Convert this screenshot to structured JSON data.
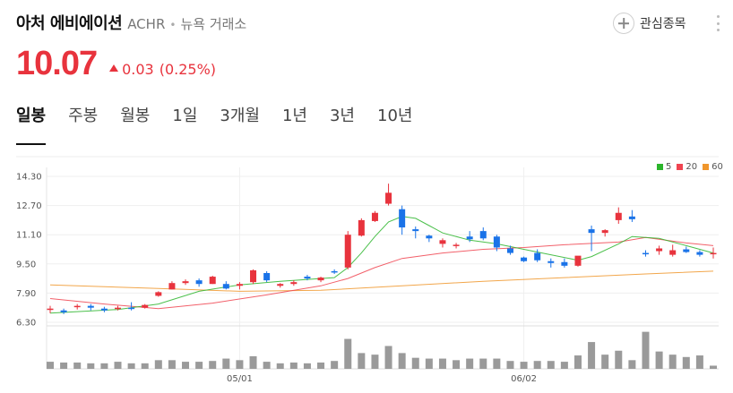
{
  "header": {
    "name": "아처 에비에이션",
    "ticker": "ACHR",
    "separator": "•",
    "exchange": "뉴욕 거래소",
    "watch_label": "관심종목"
  },
  "quote": {
    "price": "10.07",
    "change": "0.03",
    "change_pct": "(0.25%)",
    "up_color": "#e8333d",
    "down_color": "#1a73e8"
  },
  "tabs": [
    {
      "label": "일봉",
      "active": true
    },
    {
      "label": "주봉",
      "active": false
    },
    {
      "label": "월봉",
      "active": false
    },
    {
      "label": "1일",
      "active": false
    },
    {
      "label": "3개월",
      "active": false
    },
    {
      "label": "1년",
      "active": false
    },
    {
      "label": "3년",
      "active": false
    },
    {
      "label": "10년",
      "active": false
    }
  ],
  "legend": [
    {
      "label": "5",
      "color": "#2cb52c"
    },
    {
      "label": "20",
      "color": "#f04450"
    },
    {
      "label": "60",
      "color": "#f0962c"
    }
  ],
  "chart_data": {
    "type": "candlestick",
    "y_ticks": [
      "14.30",
      "12.70",
      "11.10",
      "9.50",
      "7.90",
      "6.30"
    ],
    "y_tick_values": [
      14.3,
      12.7,
      11.1,
      9.5,
      7.9,
      6.3
    ],
    "ylim": [
      6.3,
      14.3
    ],
    "x_labels": [
      {
        "label": "05/01",
        "index": 14
      },
      {
        "label": "06/02",
        "index": 35
      }
    ],
    "grid": true,
    "legend_position": "top-right",
    "candles": [
      [
        7.0,
        7.2,
        6.8,
        7.05
      ],
      [
        6.95,
        7.05,
        6.75,
        6.85
      ],
      [
        7.15,
        7.3,
        7.0,
        7.2
      ],
      [
        7.2,
        7.3,
        6.95,
        7.1
      ],
      [
        7.05,
        7.15,
        6.85,
        6.95
      ],
      [
        7.05,
        7.2,
        6.95,
        7.1
      ],
      [
        7.1,
        7.4,
        6.95,
        7.05
      ],
      [
        7.1,
        7.3,
        7.05,
        7.25
      ],
      [
        7.75,
        8.0,
        7.7,
        7.95
      ],
      [
        8.1,
        8.55,
        8.1,
        8.45
      ],
      [
        8.45,
        8.65,
        8.35,
        8.55
      ],
      [
        8.6,
        8.7,
        8.25,
        8.4
      ],
      [
        8.4,
        8.85,
        8.4,
        8.8
      ],
      [
        8.4,
        8.55,
        8.1,
        8.15
      ],
      [
        8.3,
        8.5,
        8.1,
        8.4
      ],
      [
        8.5,
        9.2,
        8.4,
        9.15
      ],
      [
        9.0,
        9.1,
        8.5,
        8.6
      ],
      [
        8.3,
        8.45,
        8.2,
        8.4
      ],
      [
        8.4,
        8.6,
        8.3,
        8.5
      ],
      [
        8.8,
        8.9,
        8.6,
        8.7
      ],
      [
        8.6,
        8.8,
        8.5,
        8.75
      ],
      [
        9.1,
        9.2,
        8.95,
        9.05
      ],
      [
        9.3,
        11.3,
        9.2,
        11.1
      ],
      [
        11.05,
        12.0,
        11.0,
        11.9
      ],
      [
        11.85,
        12.4,
        11.8,
        12.3
      ],
      [
        12.8,
        13.9,
        12.7,
        13.4
      ],
      [
        12.5,
        12.7,
        11.1,
        11.5
      ],
      [
        11.4,
        11.55,
        10.9,
        11.3
      ],
      [
        11.05,
        11.1,
        10.7,
        10.9
      ],
      [
        10.6,
        10.9,
        10.4,
        10.8
      ],
      [
        10.5,
        10.65,
        10.35,
        10.55
      ],
      [
        11.0,
        11.3,
        10.7,
        10.85
      ],
      [
        11.3,
        11.5,
        10.8,
        10.9
      ],
      [
        11.0,
        11.1,
        10.2,
        10.4
      ],
      [
        10.35,
        10.5,
        10.0,
        10.1
      ],
      [
        9.85,
        9.9,
        9.6,
        9.65
      ],
      [
        10.1,
        10.3,
        9.6,
        9.7
      ],
      [
        9.65,
        9.8,
        9.3,
        9.55
      ],
      [
        9.6,
        9.8,
        9.3,
        9.4
      ],
      [
        9.4,
        9.9,
        9.35,
        9.95
      ],
      [
        11.4,
        11.6,
        10.2,
        11.2
      ],
      [
        11.2,
        11.4,
        11.0,
        11.35
      ],
      [
        11.9,
        12.6,
        11.7,
        12.3
      ],
      [
        12.1,
        12.45,
        11.8,
        11.95
      ],
      [
        10.1,
        10.25,
        9.9,
        10.05
      ],
      [
        10.2,
        10.5,
        10.0,
        10.35
      ],
      [
        10.0,
        10.55,
        9.9,
        10.25
      ],
      [
        10.3,
        10.45,
        10.1,
        10.15
      ],
      [
        10.15,
        10.25,
        9.9,
        10.0
      ],
      [
        10.05,
        10.4,
        9.8,
        10.1
      ]
    ],
    "ma5": [
      [
        0,
        6.8
      ],
      [
        5,
        7.0
      ],
      [
        8,
        7.3
      ],
      [
        11,
        8.0
      ],
      [
        14,
        8.35
      ],
      [
        17,
        8.55
      ],
      [
        20,
        8.7
      ],
      [
        21,
        8.75
      ],
      [
        22,
        9.3
      ],
      [
        23,
        10.1
      ],
      [
        24,
        11.0
      ],
      [
        25,
        11.8
      ],
      [
        26,
        12.1
      ],
      [
        27,
        12.0
      ],
      [
        28,
        11.6
      ],
      [
        29,
        11.2
      ],
      [
        31,
        10.8
      ],
      [
        33,
        10.6
      ],
      [
        35,
        10.3
      ],
      [
        37,
        10.0
      ],
      [
        39,
        9.7
      ],
      [
        40,
        9.9
      ],
      [
        42,
        10.6
      ],
      [
        43,
        11.0
      ],
      [
        45,
        10.9
      ],
      [
        47,
        10.5
      ],
      [
        49,
        10.1
      ]
    ],
    "ma20": [
      [
        0,
        7.6
      ],
      [
        4,
        7.3
      ],
      [
        8,
        7.05
      ],
      [
        12,
        7.35
      ],
      [
        16,
        7.8
      ],
      [
        20,
        8.3
      ],
      [
        22,
        8.7
      ],
      [
        24,
        9.3
      ],
      [
        26,
        9.8
      ],
      [
        29,
        10.1
      ],
      [
        32,
        10.3
      ],
      [
        35,
        10.4
      ],
      [
        38,
        10.55
      ],
      [
        42,
        10.7
      ],
      [
        44,
        10.95
      ],
      [
        47,
        10.65
      ],
      [
        49,
        10.5
      ]
    ],
    "ma60": [
      [
        0,
        8.35
      ],
      [
        6,
        8.2
      ],
      [
        10,
        8.1
      ],
      [
        14,
        8.0
      ],
      [
        20,
        8.05
      ],
      [
        26,
        8.3
      ],
      [
        32,
        8.55
      ],
      [
        38,
        8.75
      ],
      [
        44,
        8.95
      ],
      [
        49,
        9.1
      ]
    ],
    "volumes": [
      9,
      8,
      8,
      7,
      7,
      9,
      7,
      7,
      11,
      11,
      9,
      9,
      10,
      13,
      11,
      16,
      9,
      7,
      8,
      7,
      8,
      10,
      38,
      20,
      18,
      29,
      20,
      14,
      13,
      13,
      11,
      13,
      13,
      13,
      10,
      9,
      10,
      10,
      9,
      17,
      34,
      18,
      23,
      11,
      47,
      22,
      18,
      15,
      17,
      4
    ],
    "volume_max": 50
  }
}
